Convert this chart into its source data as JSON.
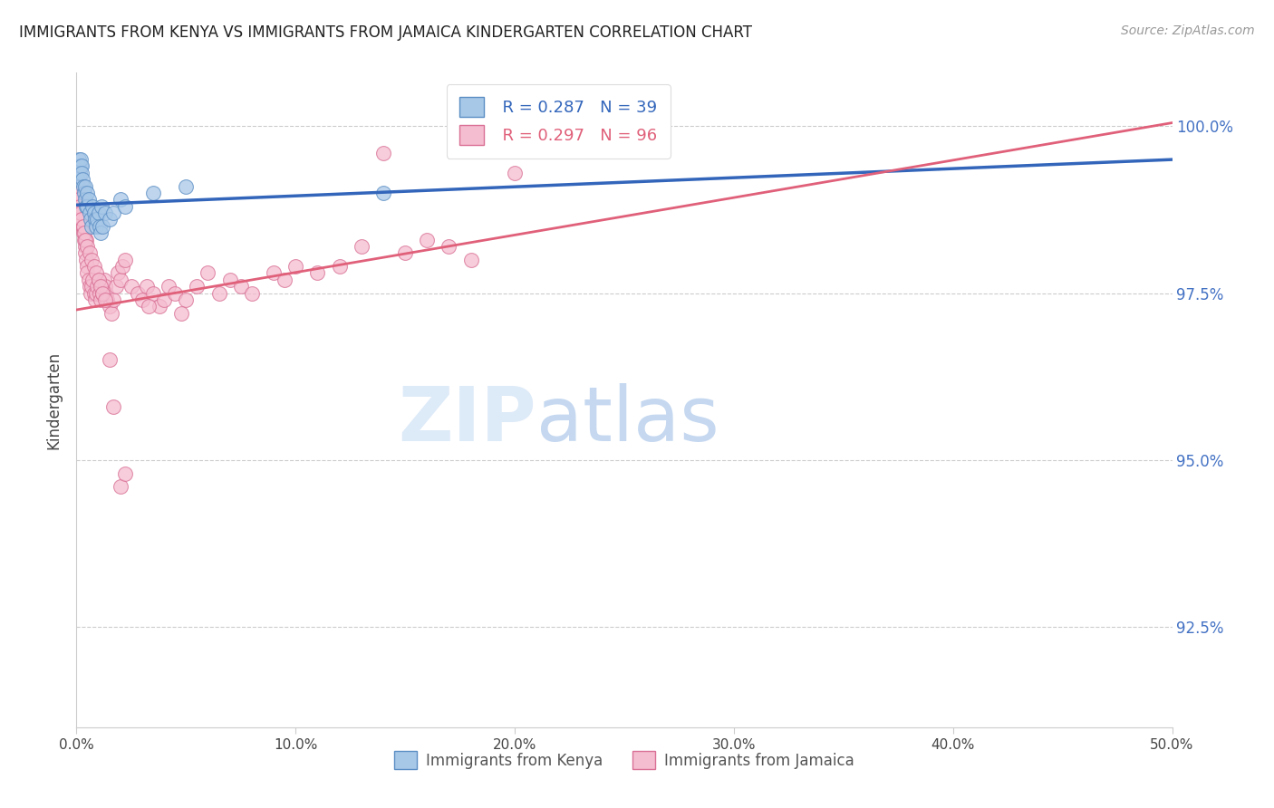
{
  "title": "IMMIGRANTS FROM KENYA VS IMMIGRANTS FROM JAMAICA KINDERGARTEN CORRELATION CHART",
  "source": "Source: ZipAtlas.com",
  "ylabel": "Kindergarten",
  "xmin": 0.0,
  "xmax": 50.0,
  "ymin": 91.0,
  "ymax": 100.8,
  "yticks": [
    92.5,
    95.0,
    97.5,
    100.0
  ],
  "xticks": [
    0.0,
    10.0,
    20.0,
    30.0,
    40.0,
    50.0
  ],
  "kenya_color": "#a8c8e8",
  "kenya_edge": "#5b8ec4",
  "jamaica_color": "#f5bdd0",
  "jamaica_edge": "#d97095",
  "kenya_line_color": "#3366bb",
  "jamaica_line_color": "#e0607a",
  "kenya_R": 0.287,
  "kenya_N": 39,
  "jamaica_R": 0.297,
  "jamaica_N": 96,
  "legend_label_kenya": "Immigrants from Kenya",
  "legend_label_jamaica": "Immigrants from Jamaica",
  "kenya_trend_x0": 0.0,
  "kenya_trend_y0": 98.82,
  "kenya_trend_x1": 50.0,
  "kenya_trend_y1": 99.5,
  "jamaica_trend_x0": 0.0,
  "jamaica_trend_y0": 97.25,
  "jamaica_trend_x1": 50.0,
  "jamaica_trend_y1": 100.05,
  "kenya_x": [
    0.05,
    0.08,
    0.1,
    0.12,
    0.15,
    0.18,
    0.2,
    0.22,
    0.25,
    0.28,
    0.3,
    0.35,
    0.38,
    0.4,
    0.45,
    0.48,
    0.5,
    0.55,
    0.6,
    0.65,
    0.7,
    0.75,
    0.8,
    0.85,
    0.9,
    0.95,
    1.0,
    1.05,
    1.1,
    1.15,
    1.2,
    1.3,
    1.5,
    1.7,
    2.0,
    2.2,
    3.5,
    5.0,
    14.0
  ],
  "kenya_y": [
    99.2,
    99.3,
    99.4,
    99.5,
    99.3,
    99.4,
    99.5,
    99.4,
    99.3,
    99.2,
    99.1,
    99.0,
    99.1,
    98.9,
    98.8,
    99.0,
    98.8,
    98.9,
    98.7,
    98.6,
    98.5,
    98.8,
    98.7,
    98.6,
    98.5,
    98.6,
    98.7,
    98.5,
    98.4,
    98.8,
    98.5,
    98.7,
    98.6,
    98.7,
    98.9,
    98.8,
    99.0,
    99.1,
    99.0
  ],
  "jamaica_x": [
    0.05,
    0.08,
    0.1,
    0.12,
    0.15,
    0.18,
    0.2,
    0.22,
    0.25,
    0.28,
    0.3,
    0.32,
    0.35,
    0.38,
    0.4,
    0.42,
    0.45,
    0.48,
    0.5,
    0.55,
    0.6,
    0.65,
    0.7,
    0.75,
    0.8,
    0.85,
    0.9,
    0.95,
    1.0,
    1.05,
    1.1,
    1.15,
    1.2,
    1.25,
    1.3,
    1.35,
    1.4,
    1.5,
    1.6,
    1.7,
    1.8,
    1.9,
    2.0,
    2.1,
    2.2,
    2.5,
    2.8,
    3.0,
    3.2,
    3.5,
    3.8,
    4.0,
    4.2,
    4.5,
    5.0,
    5.5,
    6.0,
    6.5,
    7.0,
    7.5,
    8.0,
    9.0,
    9.5,
    10.0,
    11.0,
    12.0,
    13.0,
    14.0,
    15.0,
    16.0,
    17.0,
    18.0,
    20.0,
    3.3,
    4.8,
    0.05,
    0.1,
    0.15,
    0.2,
    0.25,
    0.3,
    0.35,
    0.4,
    0.5,
    0.6,
    0.7,
    0.8,
    0.9,
    1.0,
    1.1,
    1.2,
    1.3,
    1.5,
    1.7,
    2.0,
    2.2
  ],
  "jamaica_y": [
    98.9,
    99.0,
    99.1,
    98.8,
    98.7,
    98.8,
    98.9,
    98.6,
    98.7,
    98.5,
    98.4,
    98.5,
    98.3,
    98.2,
    98.1,
    98.3,
    98.0,
    97.9,
    97.8,
    97.7,
    97.6,
    97.5,
    97.6,
    97.7,
    97.5,
    97.4,
    97.5,
    97.6,
    97.7,
    97.5,
    97.4,
    97.6,
    97.5,
    97.7,
    97.6,
    97.5,
    97.4,
    97.3,
    97.2,
    97.4,
    97.6,
    97.8,
    97.7,
    97.9,
    98.0,
    97.6,
    97.5,
    97.4,
    97.6,
    97.5,
    97.3,
    97.4,
    97.6,
    97.5,
    97.4,
    97.6,
    97.8,
    97.5,
    97.7,
    97.6,
    97.5,
    97.8,
    97.7,
    97.9,
    97.8,
    97.9,
    98.2,
    99.6,
    98.1,
    98.3,
    98.2,
    98.0,
    99.3,
    97.3,
    97.2,
    99.0,
    98.9,
    98.8,
    98.7,
    98.6,
    98.5,
    98.4,
    98.3,
    98.2,
    98.1,
    98.0,
    97.9,
    97.8,
    97.7,
    97.6,
    97.5,
    97.4,
    96.5,
    95.8,
    94.6,
    94.8
  ]
}
